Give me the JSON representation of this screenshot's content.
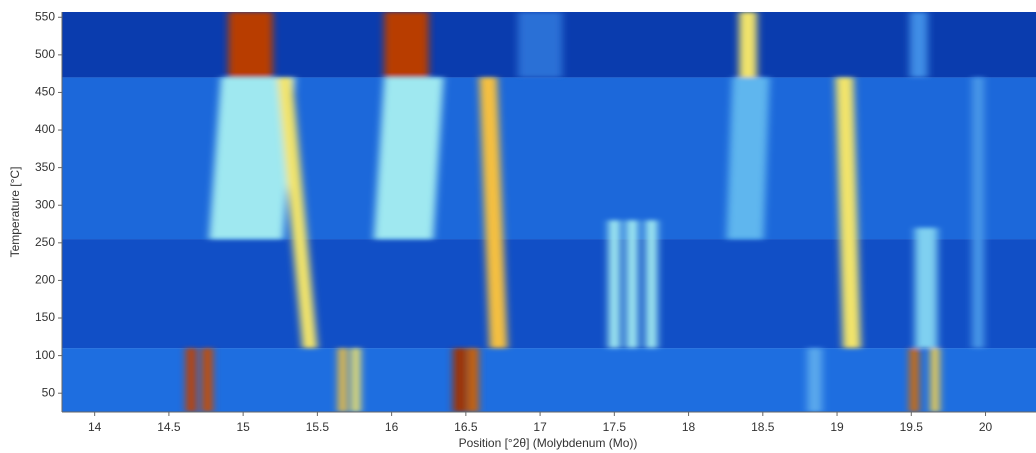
{
  "chart_data": {
    "type": "heatmap",
    "xlabel": "Position [°2θ] (Molybdenum (Mo))",
    "ylabel": "Temperature [°C]",
    "xlim": [
      13.78,
      20.34
    ],
    "ylim": [
      25,
      557
    ],
    "xticks": [
      14,
      14.5,
      15,
      15.5,
      16,
      16.5,
      17,
      17.5,
      18,
      18.5,
      19,
      19.5,
      20
    ],
    "yticks": [
      50,
      100,
      150,
      200,
      250,
      300,
      350,
      400,
      450,
      500,
      550
    ],
    "zones": [
      {
        "t": [
          25,
          110
        ],
        "color": "#1e6ee0"
      },
      {
        "t": [
          110,
          255
        ],
        "color": "#114fc6"
      },
      {
        "t": [
          255,
          470
        ],
        "color": "#1c68da"
      },
      {
        "t": [
          470,
          557
        ],
        "color": "#0a3cae"
      }
    ],
    "bands": [
      {
        "x": [
          15.02,
          15.1
        ],
        "t": [
          255,
          470
        ],
        "w": 0.5,
        "color": "#9fe8f0"
      },
      {
        "x": [
          16.08,
          16.15
        ],
        "t": [
          255,
          470
        ],
        "w": 0.4,
        "color": "#9fe8f0"
      },
      {
        "x": [
          18.38,
          18.42
        ],
        "t": [
          255,
          470
        ],
        "w": 0.25,
        "color": "#5fb6ee"
      },
      {
        "x": [
          15.05,
          15.05
        ],
        "t": [
          470,
          557
        ],
        "w": 0.3,
        "color": "#b83c00"
      },
      {
        "x": [
          16.1,
          16.1
        ],
        "t": [
          470,
          557
        ],
        "w": 0.3,
        "color": "#b83c00"
      },
      {
        "x": [
          18.4,
          18.4
        ],
        "t": [
          470,
          557
        ],
        "w": 0.12,
        "color": "#f2e46a"
      },
      {
        "x": [
          19.55,
          19.55
        ],
        "t": [
          470,
          557
        ],
        "w": 0.12,
        "color": "#3f8ee6"
      },
      {
        "x": [
          17.0,
          17.0
        ],
        "t": [
          470,
          557
        ],
        "w": 0.3,
        "color": "#2a70d6"
      },
      {
        "x": [
          15.45,
          15.28
        ],
        "t": [
          110,
          470
        ],
        "w": 0.1,
        "color": "#f2e46a"
      },
      {
        "x": [
          16.72,
          16.65
        ],
        "t": [
          110,
          470
        ],
        "w": 0.12,
        "color": "#f5c040"
      },
      {
        "x": [
          19.1,
          19.05
        ],
        "t": [
          110,
          470
        ],
        "w": 0.12,
        "color": "#f2e46a"
      },
      {
        "x": [
          17.5,
          17.5
        ],
        "t": [
          110,
          280
        ],
        "w": 0.08,
        "color": "#9fe8f0"
      },
      {
        "x": [
          17.62,
          17.62
        ],
        "t": [
          110,
          280
        ],
        "w": 0.08,
        "color": "#9fe8f0"
      },
      {
        "x": [
          17.75,
          17.75
        ],
        "t": [
          110,
          280
        ],
        "w": 0.08,
        "color": "#9fe8f0"
      },
      {
        "x": [
          19.6,
          19.6
        ],
        "t": [
          110,
          270
        ],
        "w": 0.15,
        "color": "#7fd0f0"
      },
      {
        "x": [
          19.95,
          19.95
        ],
        "t": [
          110,
          470
        ],
        "w": 0.08,
        "color": "#4a98e8"
      },
      {
        "x": [
          14.65,
          14.65
        ],
        "t": [
          25,
          110
        ],
        "w": 0.07,
        "color": "#c04000"
      },
      {
        "x": [
          14.76,
          14.76
        ],
        "t": [
          25,
          110
        ],
        "w": 0.07,
        "color": "#c84c00"
      },
      {
        "x": [
          15.67,
          15.67
        ],
        "t": [
          25,
          110
        ],
        "w": 0.06,
        "color": "#f0c040"
      },
      {
        "x": [
          15.76,
          15.76
        ],
        "t": [
          25,
          110
        ],
        "w": 0.06,
        "color": "#f2e46a"
      },
      {
        "x": [
          16.46,
          16.46
        ],
        "t": [
          25,
          110
        ],
        "w": 0.09,
        "color": "#a03000"
      },
      {
        "x": [
          16.55,
          16.55
        ],
        "t": [
          25,
          110
        ],
        "w": 0.07,
        "color": "#d06000"
      },
      {
        "x": [
          18.85,
          18.85
        ],
        "t": [
          25,
          110
        ],
        "w": 0.1,
        "color": "#5aa8ec"
      },
      {
        "x": [
          19.52,
          19.52
        ],
        "t": [
          25,
          110
        ],
        "w": 0.06,
        "color": "#d86a00"
      },
      {
        "x": [
          19.66,
          19.66
        ],
        "t": [
          25,
          110
        ],
        "w": 0.06,
        "color": "#f2d050"
      }
    ]
  }
}
